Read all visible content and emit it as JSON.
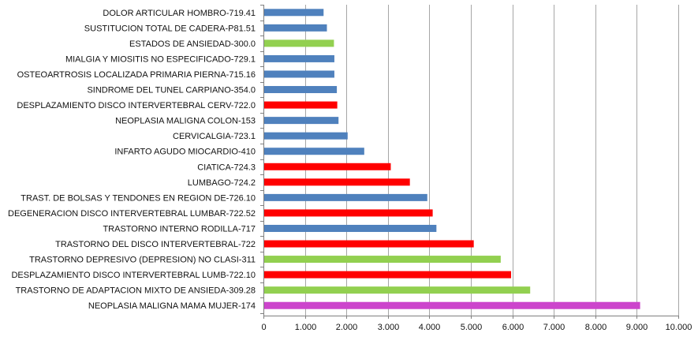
{
  "chart_data": {
    "type": "bar",
    "orientation": "horizontal",
    "categories": [
      "DOLOR ARTICULAR HOMBRO-719.41",
      "SUSTITUCION TOTAL DE CADERA-P81.51",
      "ESTADOS DE ANSIEDAD-300.0",
      "MIALGIA Y MIOSITIS NO ESPECIFICADO-729.1",
      "OSTEOARTROSIS LOCALIZADA PRIMARIA PIERNA-715.16",
      "SINDROME DEL TUNEL CARPIANO-354.0",
      "DESPLAZAMIENTO DISCO INTERVERTEBRAL CERV-722.0",
      "NEOPLASIA MALIGNA COLON-153",
      "CERVICALGIA-723.1",
      "INFARTO AGUDO MIOCARDIO-410",
      "CIATICA-724.3",
      "LUMBAGO-724.2",
      "TRAST. DE BOLSAS Y TENDONES EN REGION DE-726.10",
      "DEGENERACION DISCO INTERVERTEBRAL LUMBAR-722.52",
      "TRASTORNO INTERNO RODILLA-717",
      "TRASTORNO DEL DISCO INTERVERTEBRAL-722",
      "TRASTORNO DEPRESIVO (DEPRESION) NO CLASI-311",
      "DESPLAZAMIENTO DISCO INTERVERTEBRAL LUMB-722.10",
      "TRASTORNO DE ADAPTACION MIXTO DE ANSIEDA-309.28",
      "NEOPLASIA MALIGNA MAMA MUJER-174"
    ],
    "values": [
      1450,
      1530,
      1700,
      1710,
      1710,
      1770,
      1780,
      1810,
      2030,
      2430,
      3070,
      3530,
      3950,
      4080,
      4170,
      5070,
      5720,
      5970,
      6430,
      9080
    ],
    "bar_colors": [
      "#4F81BD",
      "#4F81BD",
      "#92D050",
      "#4F81BD",
      "#4F81BD",
      "#4F81BD",
      "#FF0000",
      "#4F81BD",
      "#4F81BD",
      "#4F81BD",
      "#FF0000",
      "#FF0000",
      "#4F81BD",
      "#FF0000",
      "#4F81BD",
      "#FF0000",
      "#92D050",
      "#FF0000",
      "#92D050",
      "#CC44CC"
    ],
    "xlim": [
      0,
      10000
    ],
    "x_ticks": [
      0,
      1000,
      2000,
      3000,
      4000,
      5000,
      6000,
      7000,
      8000,
      9000,
      10000
    ],
    "x_tick_labels": [
      "0",
      "1.000",
      "2.000",
      "3.000",
      "4.000",
      "5.000",
      "6.000",
      "7.000",
      "8.000",
      "9.000",
      "10.000"
    ],
    "grid": "vertical",
    "gridline_color": "#A6A6A6",
    "axis_color": "#7F7F7F",
    "title": "",
    "xlabel": "",
    "ylabel": ""
  }
}
